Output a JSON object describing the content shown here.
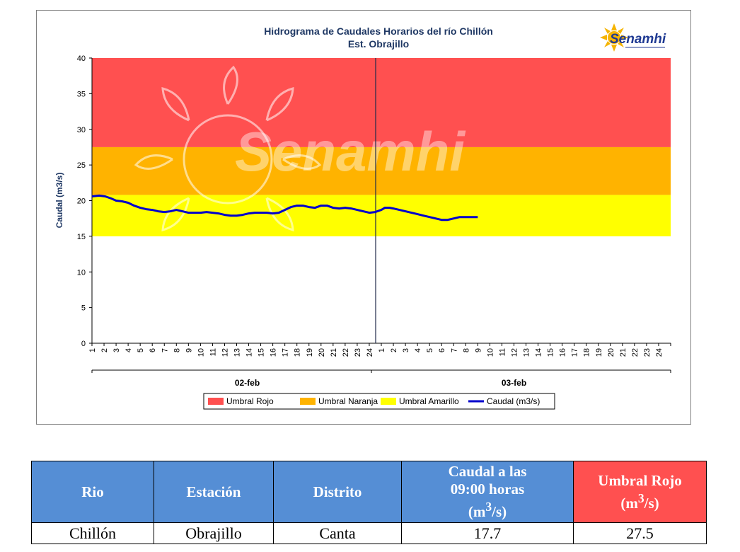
{
  "chart_data": {
    "type": "line",
    "title": "Hidrograma de Caudales Horarios del río Chillón",
    "subtitle": "Est. Obrajillo",
    "ylabel": "Caudal  (m3/s)",
    "ylim": [
      0,
      40
    ],
    "yticks": [
      "0",
      "5",
      "10",
      "15",
      "20",
      "25",
      "30",
      "35",
      "40"
    ],
    "xlim": [
      0,
      48
    ],
    "hours": [
      "1",
      "2",
      "3",
      "4",
      "5",
      "6",
      "7",
      "8",
      "9",
      "10",
      "11",
      "12",
      "13",
      "14",
      "15",
      "16",
      "17",
      "18",
      "19",
      "20",
      "21",
      "22",
      "23",
      "24"
    ],
    "dates": [
      "02-feb",
      "03-feb"
    ],
    "thresholds": [
      {
        "name": "Umbral Rojo",
        "from": 27.5,
        "to": 40,
        "color": "#ff5050"
      },
      {
        "name": "Umbral Naranja",
        "from": 20.8,
        "to": 27.5,
        "color": "#ffb300"
      },
      {
        "name": "Umbral Amarillo",
        "from": 15,
        "to": 20.8,
        "color": "#ffff00"
      }
    ],
    "series": [
      {
        "name": "Caudal (m3/s)",
        "color": "#0000cc",
        "x": [
          0,
          0.6,
          1.1,
          1.6,
          2,
          2.5,
          3,
          3.5,
          4,
          4.5,
          5,
          5.5,
          6,
          6.5,
          7,
          7.5,
          8,
          8.5,
          9,
          9.5,
          10,
          10.5,
          11,
          11.5,
          12,
          12.5,
          13,
          13.5,
          14,
          14.5,
          15,
          15.5,
          16,
          16.5,
          17,
          17.5,
          18,
          18.5,
          19,
          19.5,
          20,
          20.5,
          21,
          21.5,
          22,
          22.5,
          23,
          23.5,
          24,
          24.3,
          24.7,
          25,
          25.5,
          26,
          26.5,
          27,
          27.5,
          28,
          28.5,
          29,
          29.5,
          30,
          30.5,
          31,
          31.5,
          32
        ],
        "y": [
          20.6,
          20.7,
          20.6,
          20.3,
          20.0,
          19.9,
          19.7,
          19.3,
          19.0,
          18.8,
          18.7,
          18.5,
          18.4,
          18.5,
          18.7,
          18.5,
          18.3,
          18.3,
          18.3,
          18.4,
          18.3,
          18.2,
          18.0,
          17.9,
          17.9,
          18.0,
          18.2,
          18.3,
          18.3,
          18.3,
          18.2,
          18.3,
          18.7,
          19.1,
          19.3,
          19.3,
          19.1,
          19.0,
          19.3,
          19.3,
          19.0,
          18.9,
          19.0,
          18.9,
          18.7,
          18.5,
          18.3,
          18.4,
          18.7,
          19.0,
          19.0,
          18.9,
          18.7,
          18.5,
          18.3,
          18.1,
          17.9,
          17.7,
          17.5,
          17.3,
          17.3,
          17.5,
          17.7,
          17.7,
          17.7,
          17.7
        ]
      }
    ],
    "legend_position": "bottom"
  },
  "logo": {
    "text": "Senamhi"
  },
  "watermark": {
    "text": "Senamhi"
  },
  "table": {
    "headers": {
      "rio": "Rio",
      "estacion": "Estación",
      "distrito": "Distrito",
      "caudal_l1": "Caudal a las",
      "caudal_l2": "09:00 horas",
      "caudal_l3_base": "(m",
      "caudal_l3_sup": "3",
      "caudal_l3_end": "/s)",
      "umbral_l1": "Umbral Rojo",
      "umbral_l2_base": "(m",
      "umbral_l2_sup": "3",
      "umbral_l2_end": "/s)"
    },
    "row": {
      "rio": "Chillón",
      "estacion": "Obrajillo",
      "distrito": "Canta",
      "caudal": "17.7",
      "umbral_rojo": "27.5"
    },
    "colors": {
      "header_blue": "#558ed5",
      "header_red": "#ff5050"
    }
  }
}
